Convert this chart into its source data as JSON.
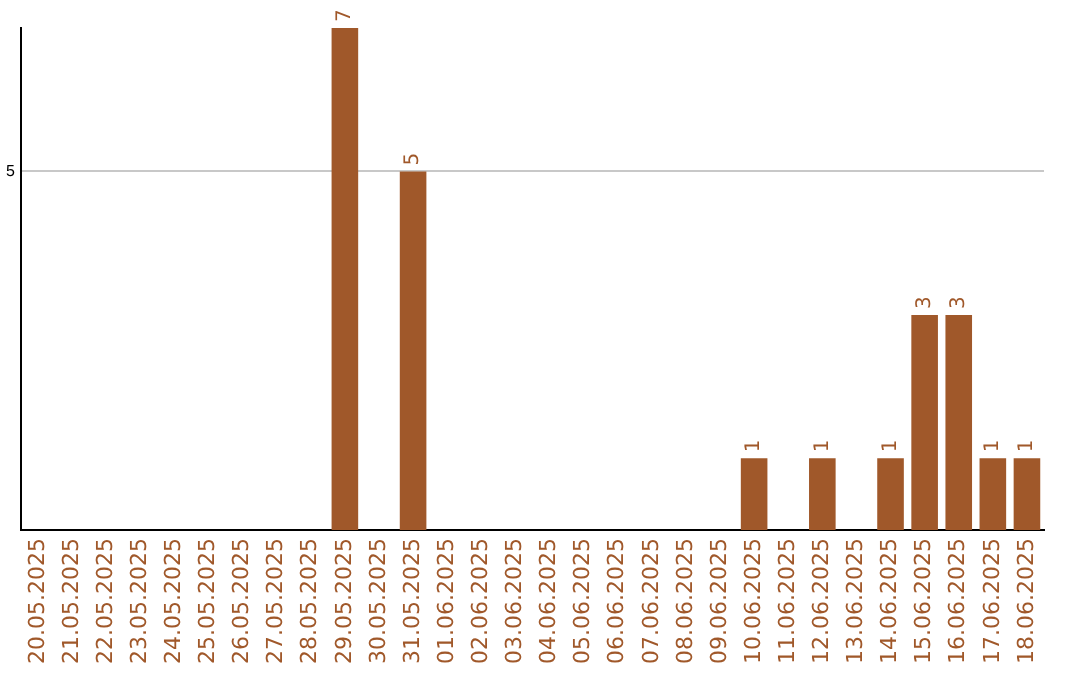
{
  "chart_data": {
    "type": "bar",
    "categories": [
      "20.05.2025",
      "21.05.2025",
      "22.05.2025",
      "23.05.2025",
      "24.05.2025",
      "25.05.2025",
      "26.05.2025",
      "27.05.2025",
      "28.05.2025",
      "29.05.2025",
      "30.05.2025",
      "31.05.2025",
      "01.06.2025",
      "02.06.2025",
      "03.06.2025",
      "04.06.2025",
      "05.06.2025",
      "06.06.2025",
      "07.06.2025",
      "08.06.2025",
      "09.06.2025",
      "10.06.2025",
      "11.06.2025",
      "12.06.2025",
      "13.06.2025",
      "14.06.2025",
      "15.06.2025",
      "16.06.2025",
      "17.06.2025",
      "18.06.2025"
    ],
    "values": [
      null,
      null,
      null,
      null,
      null,
      null,
      null,
      null,
      null,
      7,
      null,
      5,
      null,
      null,
      null,
      null,
      null,
      null,
      null,
      null,
      null,
      1,
      null,
      1,
      null,
      1,
      3,
      3,
      1,
      1
    ],
    "color": "#a0582a",
    "ylim": [
      0,
      7
    ],
    "yticks": [
      5
    ],
    "grid": "y",
    "legend": false,
    "data_labels": true
  }
}
